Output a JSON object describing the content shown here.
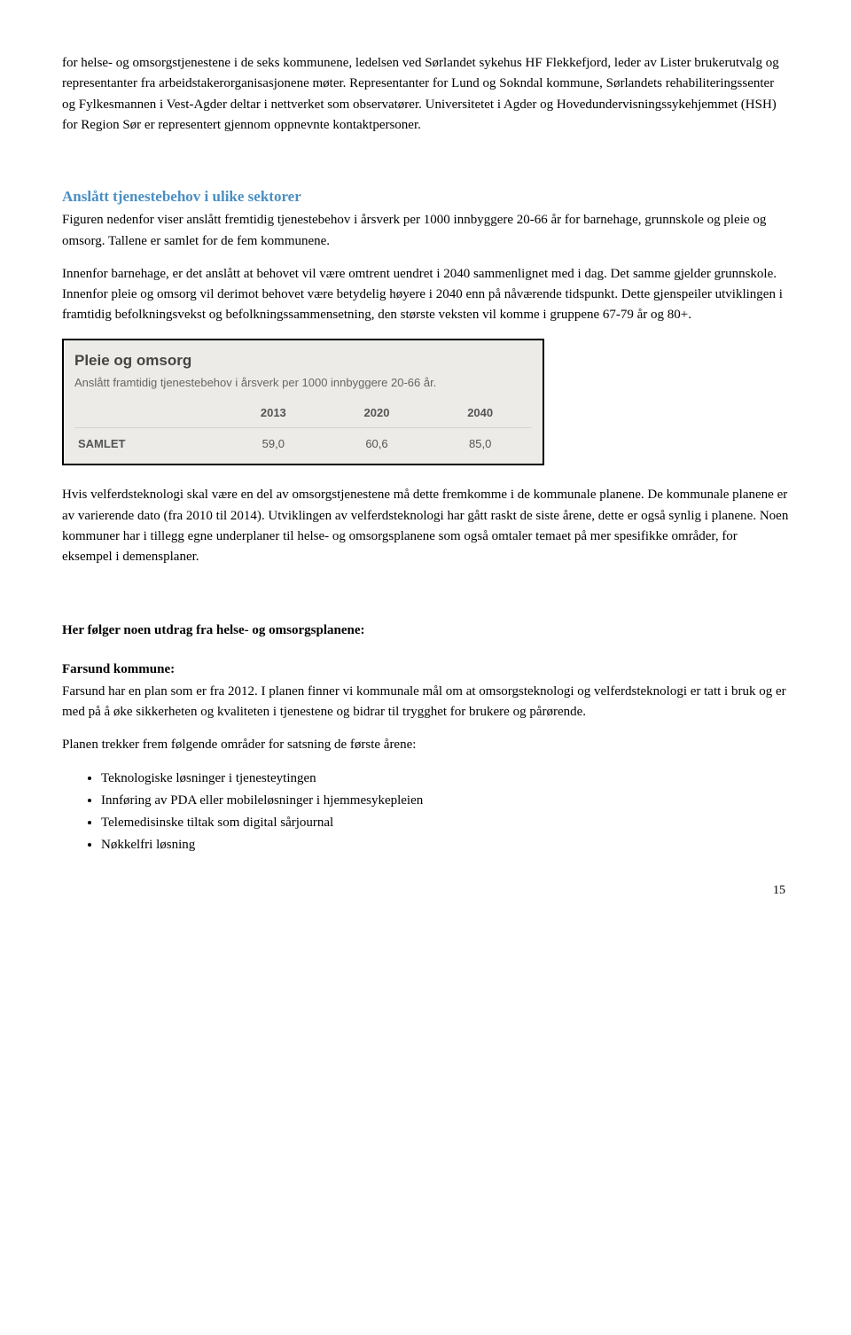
{
  "para1": "for helse- og omsorgstjenestene i de seks kommunene, ledelsen ved Sørlandet sykehus HF Flekkefjord, leder av Lister brukerutvalg og representanter fra arbeidstakerorganisasjonene møter. Representanter for Lund og Sokndal kommune, Sørlandets rehabiliteringssenter og Fylkesmannen i Vest-Agder deltar i nettverket som observatører. Universitetet i Agder og Hovedundervisningssykehjemmet (HSH) for Region Sør er representert gjennom oppnevnte kontaktpersoner.",
  "heading1": "Anslått tjenestebehov i ulike sektorer",
  "para2": "Figuren nedenfor viser anslått fremtidig tjenestebehov i årsverk per 1000 innbyggere 20-66 år for barnehage, grunnskole og pleie og omsorg. Tallene er samlet for de fem kommunene.",
  "para3": "Innenfor barnehage, er det anslått at behovet vil være omtrent uendret i 2040 sammenlignet med i dag. Det samme gjelder grunnskole. Innenfor pleie og omsorg vil derimot behovet være betydelig høyere i 2040 enn på nåværende tidspunkt. Dette gjenspeiler utviklingen i framtidig befolkningsvekst og befolkningssammensetning,  den største veksten vil komme i gruppene 67-79 år og 80+.",
  "table": {
    "title": "Pleie og omsorg",
    "subtitle": "Anslått framtidig tjenestebehov i årsverk per 1000 innbyggere 20-66 år.",
    "columns": [
      "2013",
      "2020",
      "2040"
    ],
    "row_label": "SAMLET",
    "values": [
      "59,0",
      "60,6",
      "85,0"
    ]
  },
  "para4": "Hvis velferdsteknologi skal være en del av omsorgstjenestene må dette fremkomme i de kommunale planene.  De kommunale planene er av varierende dato (fra 2010 til 2014).  Utviklingen av velferdsteknologi har gått raskt de siste årene,  dette er også synlig i planene. Noen kommuner har i tillegg egne underplaner til helse- og omsorgsplanene som også omtaler temaet på mer spesifikke områder, for eksempel i demensplaner.",
  "heading2": "Her følger noen utdrag fra helse- og omsorgsplanene:",
  "heading3": "Farsund kommune:",
  "para5": "Farsund har en plan som er fra 2012. I planen finner vi kommunale mål om at omsorgsteknologi og velferdsteknologi er tatt i bruk og er med på å øke sikkerheten og kvaliteten i tjenestene og bidrar til trygghet for brukere og pårørende.",
  "para6": "Planen trekker frem følgende områder for satsning de første årene:",
  "bullets": [
    "Teknologiske løsninger i tjenesteytingen",
    "Innføring av PDA eller mobileløsninger i hjemmesykepleien",
    "Telemedisinske tiltak som digital sårjournal",
    "Nøkkelfri løsning"
  ],
  "page_number": "15"
}
